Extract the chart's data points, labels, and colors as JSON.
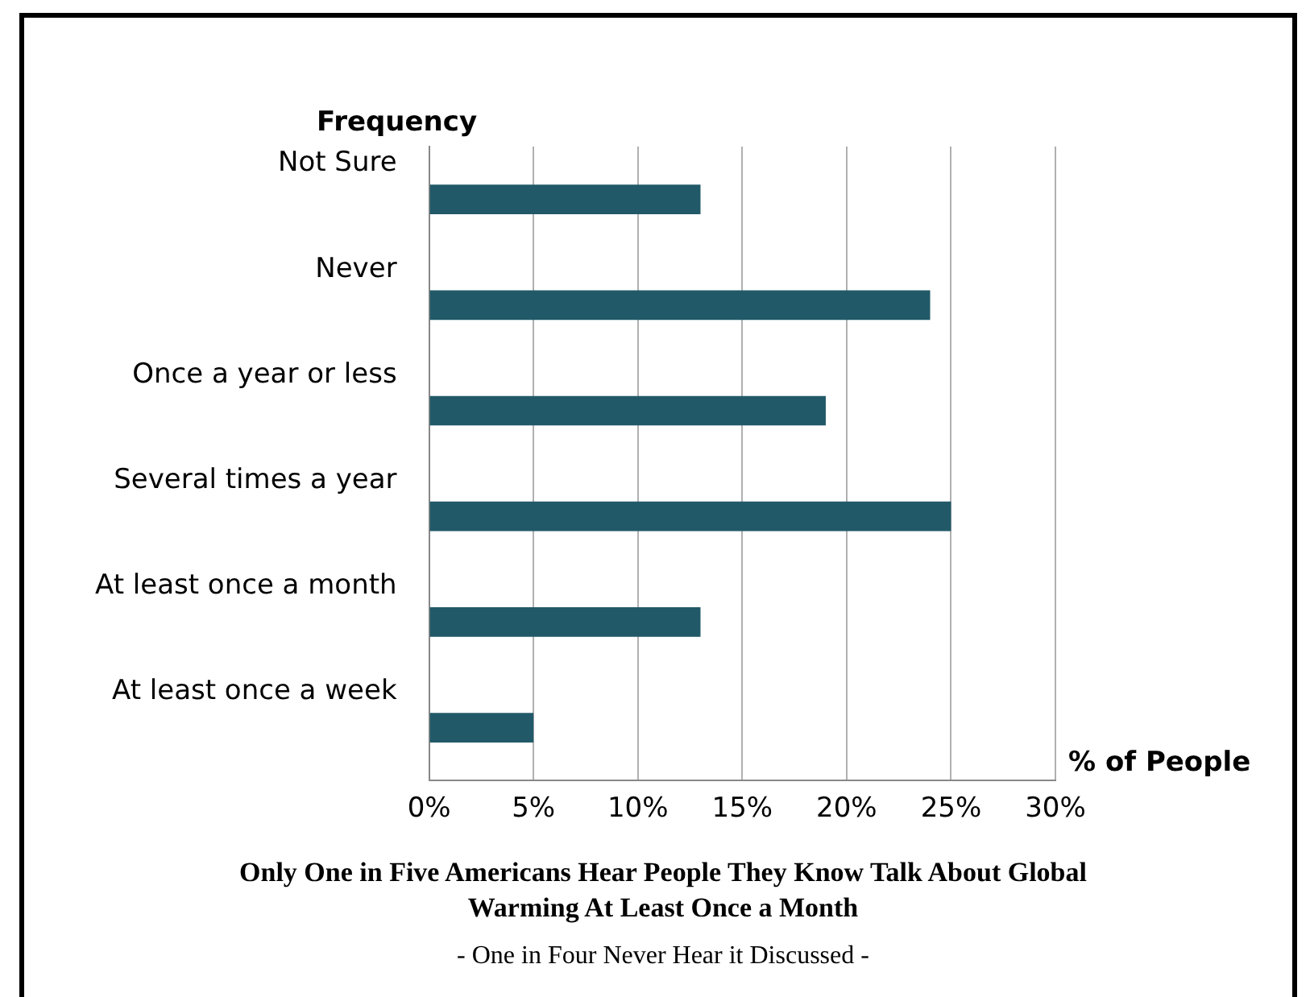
{
  "chart_data": {
    "type": "bar",
    "orientation": "horizontal",
    "title": "Only One in Five Americans Hear People They Know Talk About Global Warming At Least Once a Month",
    "subtitle": "- One in Four Never Hear it Discussed -",
    "ylabel": "Frequency",
    "xlabel": "% of People",
    "categories": [
      "Not Sure",
      "Never",
      "Once a year or less",
      "Several times a year",
      "At least once a month",
      "At least once a week"
    ],
    "values": [
      13,
      24,
      19,
      25,
      13,
      5
    ],
    "color": "#215968",
    "xlim": [
      0,
      30
    ],
    "xticks": [
      {
        "value": 0,
        "label": "0%"
      },
      {
        "value": 5,
        "label": "5%"
      },
      {
        "value": 10,
        "label": "10%"
      },
      {
        "value": 15,
        "label": "15%"
      },
      {
        "value": 20,
        "label": "20%"
      },
      {
        "value": 25,
        "label": "25%"
      },
      {
        "value": 30,
        "label": "30%"
      }
    ],
    "grid": "x"
  }
}
